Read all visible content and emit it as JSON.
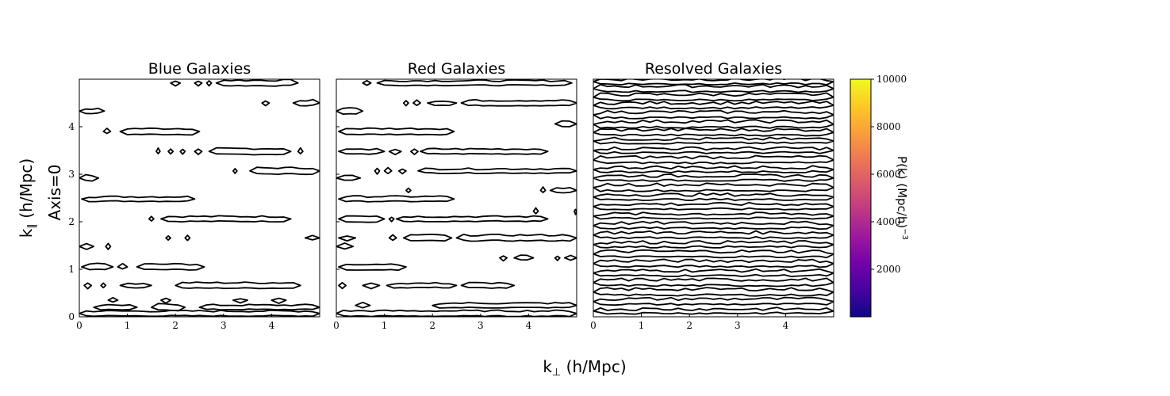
{
  "figure": {
    "xlabel": "k",
    "xlabel_sub": "⊥",
    "xlabel_unit": " (h/Mpc)",
    "ylabel": "k",
    "ylabel_sub": "∥",
    "ylabel_unit": " (h/Mpc)",
    "row_label": "Axis=0"
  },
  "chart_data": [
    {
      "type": "contour",
      "title": "Blue Galaxies",
      "xlim": [
        0,
        5
      ],
      "ylim": [
        0,
        5
      ],
      "x_ticks": [
        0,
        1,
        2,
        3,
        4
      ],
      "y_ticks": [
        0,
        1,
        2,
        3,
        4
      ],
      "contours": [
        {
          "y": 4.92,
          "segments": [
            [
              1.9,
              2.1
            ],
            [
              2.4,
              2.55
            ],
            [
              2.65,
              2.75
            ],
            [
              2.85,
              4.55
            ]
          ]
        },
        {
          "y": 4.5,
          "segments": [
            [
              3.8,
              3.95
            ],
            [
              4.45,
              5.0
            ]
          ]
        },
        {
          "y": 4.33,
          "segments": [
            [
              0.0,
              0.52
            ]
          ]
        },
        {
          "y": 3.9,
          "segments": [
            [
              0.5,
              0.65
            ],
            [
              0.85,
              2.5
            ]
          ]
        },
        {
          "y": 3.48,
          "segments": [
            [
              1.6,
              1.68
            ],
            [
              1.85,
              1.95
            ],
            [
              2.1,
              2.2
            ],
            [
              2.4,
              2.55
            ],
            [
              2.7,
              4.4
            ],
            [
              4.55,
              4.65
            ]
          ]
        },
        {
          "y": 3.07,
          "segments": [
            [
              3.2,
              3.28
            ],
            [
              3.55,
              5.0
            ]
          ]
        },
        {
          "y": 2.92,
          "segments": [
            [
              0.0,
              0.4
            ]
          ]
        },
        {
          "y": 2.48,
          "segments": [
            [
              0.05,
              2.4
            ]
          ]
        },
        {
          "y": 2.06,
          "segments": [
            [
              1.45,
              1.55
            ],
            [
              1.7,
              4.4
            ]
          ]
        },
        {
          "y": 1.66,
          "segments": [
            [
              1.8,
              1.9
            ],
            [
              2.2,
              2.3
            ],
            [
              4.7,
              5.0
            ]
          ]
        },
        {
          "y": 1.48,
          "segments": [
            [
              0.0,
              0.3
            ],
            [
              0.55,
              0.65
            ]
          ]
        },
        {
          "y": 1.05,
          "segments": [
            [
              0.05,
              0.7
            ],
            [
              0.8,
              1.0
            ],
            [
              1.2,
              2.6
            ]
          ]
        },
        {
          "y": 0.66,
          "segments": [
            [
              0.1,
              0.25
            ],
            [
              0.45,
              0.55
            ],
            [
              0.85,
              1.5
            ],
            [
              2.0,
              4.6
            ]
          ]
        },
        {
          "y": 0.35,
          "segments": [
            [
              0.6,
              0.8
            ],
            [
              1.7,
              1.9
            ],
            [
              3.2,
              3.5
            ],
            [
              4.0,
              4.3
            ]
          ]
        },
        {
          "y": 0.2,
          "segments": [
            [
              0.3,
              1.2
            ],
            [
              1.5,
              2.2
            ],
            [
              2.5,
              5.0
            ]
          ]
        },
        {
          "y": 0.07,
          "segments": [
            [
              0.0,
              5.0
            ]
          ]
        }
      ]
    },
    {
      "type": "contour",
      "title": "Red Galaxies",
      "xlim": [
        0,
        5
      ],
      "ylim": [
        0,
        5
      ],
      "x_ticks": [
        0,
        1,
        2,
        3,
        4
      ],
      "y_ticks": [
        0,
        1,
        2,
        3,
        4
      ],
      "contours": [
        {
          "y": 4.92,
          "segments": [
            [
              0.55,
              0.72
            ],
            [
              0.85,
              4.9
            ]
          ]
        },
        {
          "y": 4.5,
          "segments": [
            [
              1.4,
              1.5
            ],
            [
              1.6,
              1.75
            ],
            [
              1.9,
              2.5
            ],
            [
              2.6,
              5.0
            ]
          ]
        },
        {
          "y": 4.33,
          "segments": [
            [
              0.0,
              0.55
            ]
          ]
        },
        {
          "y": 4.06,
          "segments": [
            [
              4.55,
              5.0
            ]
          ]
        },
        {
          "y": 3.9,
          "segments": [
            [
              0.05,
              2.45
            ]
          ]
        },
        {
          "y": 3.48,
          "segments": [
            [
              0.05,
              1.0
            ],
            [
              1.1,
              1.35
            ],
            [
              1.55,
              1.7
            ],
            [
              1.75,
              4.4
            ]
          ]
        },
        {
          "y": 3.07,
          "segments": [
            [
              0.8,
              0.9
            ],
            [
              1.0,
              1.15
            ],
            [
              1.3,
              1.45
            ],
            [
              1.7,
              5.0
            ]
          ]
        },
        {
          "y": 2.92,
          "segments": [
            [
              0.0,
              0.5
            ]
          ]
        },
        {
          "y": 2.66,
          "segments": [
            [
              1.45,
              1.55
            ],
            [
              4.25,
              4.35
            ],
            [
              4.45,
              5.0
            ]
          ]
        },
        {
          "y": 2.48,
          "segments": [
            [
              0.05,
              2.45
            ]
          ]
        },
        {
          "y": 2.22,
          "segments": [
            [
              4.1,
              4.2
            ],
            [
              4.95,
              5.0
            ]
          ]
        },
        {
          "y": 2.06,
          "segments": [
            [
              0.05,
              1.0
            ],
            [
              1.1,
              1.2
            ],
            [
              1.25,
              4.4
            ]
          ]
        },
        {
          "y": 1.66,
          "segments": [
            [
              0.05,
              0.4
            ],
            [
              1.1,
              1.25
            ],
            [
              1.4,
              2.4
            ],
            [
              2.5,
              5.0
            ]
          ]
        },
        {
          "y": 1.48,
          "segments": [
            [
              0.0,
              0.35
            ]
          ]
        },
        {
          "y": 1.24,
          "segments": [
            [
              3.4,
              3.55
            ],
            [
              3.7,
              4.1
            ],
            [
              4.55,
              4.65
            ],
            [
              4.75,
              5.0
            ]
          ]
        },
        {
          "y": 1.05,
          "segments": [
            [
              0.05,
              1.45
            ]
          ]
        },
        {
          "y": 0.66,
          "segments": [
            [
              0.05,
              0.2
            ],
            [
              0.55,
              0.9
            ],
            [
              1.05,
              2.5
            ],
            [
              2.6,
              3.7
            ]
          ]
        },
        {
          "y": 0.24,
          "segments": [
            [
              0.4,
              0.7
            ],
            [
              2.0,
              5.0
            ]
          ]
        },
        {
          "y": 0.07,
          "segments": [
            [
              0.0,
              5.0
            ]
          ]
        }
      ]
    },
    {
      "type": "contour",
      "title": "Resolved Galaxies",
      "xlim": [
        0,
        5
      ],
      "ylim": [
        0,
        5
      ],
      "x_ticks": [
        0,
        1,
        2,
        3,
        4
      ],
      "y_ticks": [],
      "contours": [
        {
          "y": 4.95,
          "segments": [
            [
              0.0,
              5.0
            ]
          ]
        },
        {
          "y": 4.8,
          "segments": [
            [
              0.0,
              5.0
            ]
          ]
        },
        {
          "y": 4.62,
          "segments": [
            [
              0.0,
              5.0
            ]
          ]
        },
        {
          "y": 4.45,
          "segments": [
            [
              0.0,
              5.0
            ]
          ]
        },
        {
          "y": 4.25,
          "segments": [
            [
              0.0,
              5.0
            ]
          ]
        },
        {
          "y": 4.05,
          "segments": [
            [
              0.0,
              5.0
            ]
          ]
        },
        {
          "y": 3.88,
          "segments": [
            [
              0.0,
              5.0
            ]
          ]
        },
        {
          "y": 3.7,
          "segments": [
            [
              0.0,
              5.0
            ]
          ]
        },
        {
          "y": 3.5,
          "segments": [
            [
              0.0,
              5.0
            ]
          ]
        },
        {
          "y": 3.3,
          "segments": [
            [
              0.0,
              5.0
            ]
          ]
        },
        {
          "y": 3.1,
          "segments": [
            [
              0.0,
              5.0
            ]
          ]
        },
        {
          "y": 2.92,
          "segments": [
            [
              0.0,
              5.0
            ]
          ]
        },
        {
          "y": 2.72,
          "segments": [
            [
              0.0,
              5.0
            ]
          ]
        },
        {
          "y": 2.52,
          "segments": [
            [
              0.0,
              5.0
            ]
          ]
        },
        {
          "y": 2.32,
          "segments": [
            [
              0.0,
              5.0
            ]
          ]
        },
        {
          "y": 2.12,
          "segments": [
            [
              0.0,
              5.0
            ]
          ]
        },
        {
          "y": 1.92,
          "segments": [
            [
              0.0,
              5.0
            ]
          ]
        },
        {
          "y": 1.72,
          "segments": [
            [
              0.0,
              5.0
            ]
          ]
        },
        {
          "y": 1.52,
          "segments": [
            [
              0.0,
              5.0
            ]
          ]
        },
        {
          "y": 1.32,
          "segments": [
            [
              0.0,
              5.0
            ]
          ]
        },
        {
          "y": 1.12,
          "segments": [
            [
              0.0,
              5.0
            ]
          ]
        },
        {
          "y": 0.92,
          "segments": [
            [
              0.0,
              5.0
            ]
          ]
        },
        {
          "y": 0.72,
          "segments": [
            [
              0.0,
              5.0
            ]
          ]
        },
        {
          "y": 0.52,
          "segments": [
            [
              0.0,
              5.0
            ]
          ]
        },
        {
          "y": 0.32,
          "segments": [
            [
              0.0,
              5.0
            ]
          ]
        },
        {
          "y": 0.12,
          "segments": [
            [
              0.0,
              5.0
            ]
          ]
        }
      ]
    }
  ],
  "colorbar": {
    "label": "P(k) (Mpc/h)",
    "label_exp": "−3",
    "colormap": "plasma",
    "range": [
      0,
      10000
    ],
    "ticks": [
      2000,
      4000,
      6000,
      8000,
      10000
    ],
    "colors": [
      "#0d0887",
      "#46039f",
      "#7201a8",
      "#9c179e",
      "#bd3786",
      "#d8576b",
      "#ed7953",
      "#fb9f3a",
      "#fdca26",
      "#f0f921"
    ]
  }
}
